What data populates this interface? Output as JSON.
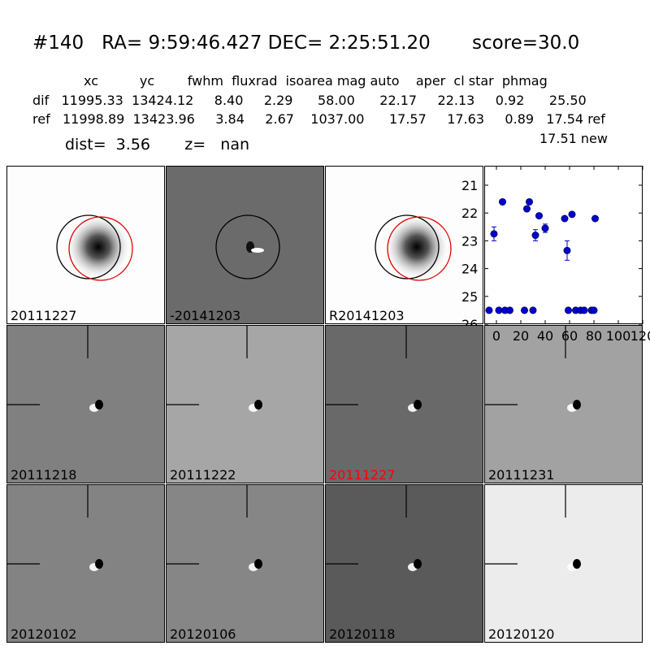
{
  "header": {
    "title": "#140   RA= 9:59:46.427 DEC= 2:25:51.20       score=30.0",
    "columns": "xc          yc        fwhm  fluxrad  isoarea mag auto    aper  cl star  phmag",
    "dif": "dif   11995.33  13424.12     8.40     2.29      58.00      22.17     22.13     0.92      25.50",
    "ref": "ref   11998.89  13423.96     3.84     2.67    1037.00      17.57     17.63     0.89   17.54 ref",
    "new": "17.51 new",
    "dist": "dist=  3.56       z=   nan"
  },
  "panels": [
    {
      "label": "20111227",
      "bg": "#fdfdfd",
      "label_color": "#000000"
    },
    {
      "label": "-20141203",
      "bg": "#6b6b6b",
      "label_color": "#000000"
    },
    {
      "label": "R20141203",
      "bg": "#fdfdfd",
      "label_color": "#000000"
    },
    {
      "label": "20111218",
      "bg": "#808080",
      "label_color": "#000000"
    },
    {
      "label": "20111222",
      "bg": "#a6a6a6",
      "label_color": "#000000"
    },
    {
      "label": "20111227",
      "bg": "#696969",
      "label_color": "#ff0000"
    },
    {
      "label": "20111231",
      "bg": "#a2a2a2",
      "label_color": "#000000"
    },
    {
      "label": "20120102",
      "bg": "#838383",
      "label_color": "#000000"
    },
    {
      "label": "20120106",
      "bg": "#868686",
      "label_color": "#000000"
    },
    {
      "label": "20120118",
      "bg": "#5a5a5a",
      "label_color": "#000000"
    },
    {
      "label": "20120120",
      "bg": "#ececec",
      "label_color": "#000000"
    }
  ],
  "chart_data": {
    "type": "scatter",
    "xlim": [
      -10,
      120
    ],
    "ylim": [
      26,
      20.3
    ],
    "xticks": [
      "0",
      "20",
      "40",
      "60",
      "80",
      "100",
      "120"
    ],
    "xtick_values": [
      0,
      20,
      40,
      60,
      80,
      100,
      120
    ],
    "yticks": [
      "21",
      "22",
      "23",
      "24",
      "25",
      "26"
    ],
    "ytick_values": [
      21,
      22,
      23,
      24,
      25,
      26
    ],
    "color": "#0000cc",
    "points": [
      {
        "x": -6,
        "y": 25.5
      },
      {
        "x": -2,
        "y": 22.75,
        "err": 0.25
      },
      {
        "x": 2,
        "y": 25.5
      },
      {
        "x": 5,
        "y": 21.6
      },
      {
        "x": 7,
        "y": 25.5
      },
      {
        "x": 11,
        "y": 25.5
      },
      {
        "x": 23,
        "y": 25.5
      },
      {
        "x": 25,
        "y": 21.85
      },
      {
        "x": 27,
        "y": 21.6
      },
      {
        "x": 30,
        "y": 25.5
      },
      {
        "x": 32,
        "y": 22.8,
        "err": 0.2
      },
      {
        "x": 35,
        "y": 22.1
      },
      {
        "x": 40,
        "y": 22.55,
        "err": 0.15
      },
      {
        "x": 56,
        "y": 22.2
      },
      {
        "x": 58,
        "y": 23.35,
        "err": 0.35
      },
      {
        "x": 59,
        "y": 25.5
      },
      {
        "x": 62,
        "y": 22.05
      },
      {
        "x": 65,
        "y": 25.5
      },
      {
        "x": 69,
        "y": 25.5
      },
      {
        "x": 72,
        "y": 25.5
      },
      {
        "x": 78,
        "y": 25.5
      },
      {
        "x": 80,
        "y": 25.5
      },
      {
        "x": 81,
        "y": 22.2
      }
    ]
  }
}
